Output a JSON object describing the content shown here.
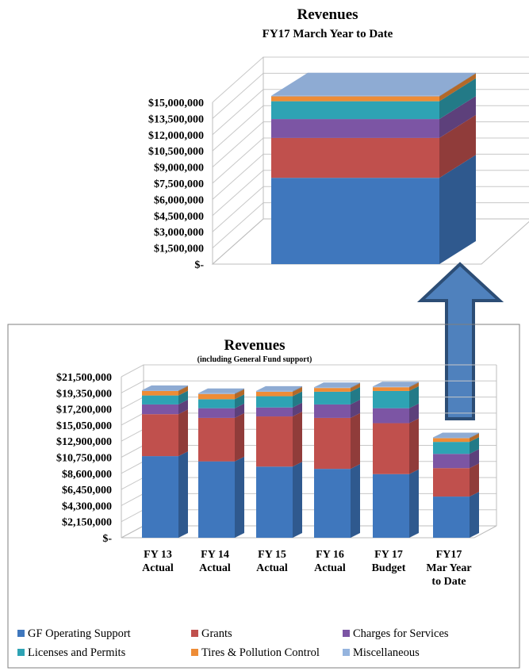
{
  "chart_data": [
    {
      "type": "bar",
      "stacked": true,
      "three_d": true,
      "title": "Revenues",
      "subtitle": "FY17 March Year to Date",
      "y_ticks": [
        "$-",
        "$1,500,000",
        "$3,000,000",
        "$4,500,000",
        "$6,000,000",
        "$7,500,000",
        "$9,000,000",
        "$10,500,000",
        "$12,000,000",
        "$13,500,000",
        "$15,000,000"
      ],
      "ylim": [
        0,
        15000000
      ],
      "grid": true,
      "categories": [
        ""
      ],
      "series": [
        {
          "name": "GF Operating Support",
          "color": "#3f77bd",
          "values": [
            8000000
          ]
        },
        {
          "name": "Grants",
          "color": "#c0504d",
          "values": [
            3700000
          ]
        },
        {
          "name": "Charges for Services",
          "color": "#7c55a4",
          "values": [
            1750000
          ]
        },
        {
          "name": "Licenses and Permits",
          "color": "#2ea3b4",
          "values": [
            1650000
          ]
        },
        {
          "name": "Tires & Pollution Control",
          "color": "#ee8c36",
          "values": [
            450000
          ]
        },
        {
          "name": "Miscellaneous",
          "color": "#95b4de",
          "values": [
            50000
          ]
        }
      ]
    },
    {
      "type": "bar",
      "stacked": true,
      "three_d": true,
      "title": "Revenues",
      "subtitle": "(including General Fund support)",
      "y_ticks": [
        "$-",
        "$2,150,000",
        "$4,300,000",
        "$6,450,000",
        "$8,600,000",
        "$10,750,000",
        "$12,900,000",
        "$15,050,000",
        "$17,200,000",
        "$19,350,000",
        "$21,500,000"
      ],
      "ylim": [
        0,
        21500000
      ],
      "grid": true,
      "legend_position": "bottom",
      "categories": [
        [
          "FY 13",
          "Actual"
        ],
        [
          "FY 14",
          "Actual"
        ],
        [
          "FY 15",
          "Actual"
        ],
        [
          "FY 16",
          "Actual"
        ],
        [
          "FY 17",
          "Budget"
        ],
        [
          "FY17",
          "Mar Year",
          "to Date"
        ]
      ],
      "series": [
        {
          "name": "GF Operating Support",
          "color": "#3f77bd",
          "values": [
            10900000,
            10200000,
            9500000,
            9200000,
            8500000,
            5500000
          ]
        },
        {
          "name": "Grants",
          "color": "#c0504d",
          "values": [
            5600000,
            5800000,
            6700000,
            6800000,
            6800000,
            3800000
          ]
        },
        {
          "name": "Charges for Services",
          "color": "#7c55a4",
          "values": [
            1300000,
            1300000,
            1200000,
            1800000,
            2000000,
            1900000
          ]
        },
        {
          "name": "Licenses and Permits",
          "color": "#2ea3b4",
          "values": [
            1200000,
            1200000,
            1500000,
            1700000,
            2300000,
            1600000
          ]
        },
        {
          "name": "Tires & Pollution Control",
          "color": "#ee8c36",
          "values": [
            600000,
            700000,
            600000,
            500000,
            500000,
            500000
          ]
        },
        {
          "name": "Miscellaneous",
          "color": "#95b4de",
          "values": [
            100000,
            100000,
            100000,
            100000,
            100000,
            100000
          ]
        }
      ]
    }
  ]
}
